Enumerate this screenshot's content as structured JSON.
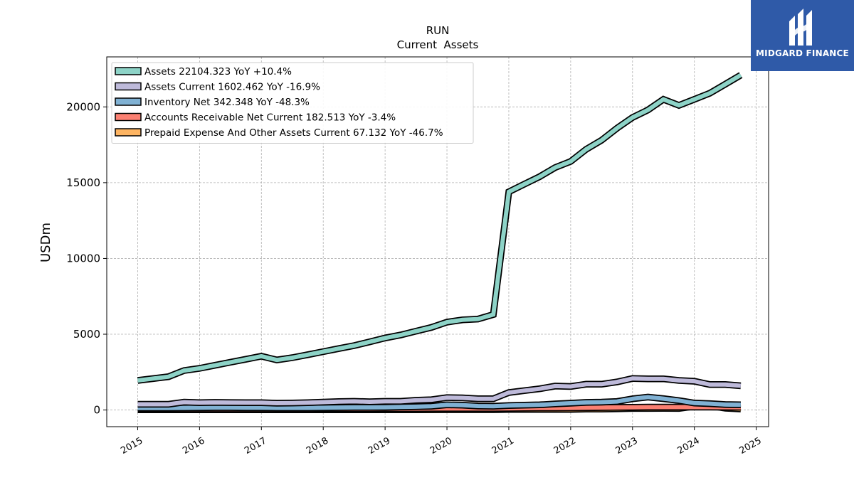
{
  "chart_data": {
    "type": "area",
    "title": "RUN",
    "subtitle": "Current  Assets",
    "ylabel": "USDm",
    "xlabel": "",
    "ylim": [
      -1100,
      23300
    ],
    "xlim": [
      2014.5,
      2025.2
    ],
    "yticks": [
      0,
      5000,
      10000,
      15000,
      20000
    ],
    "xticks": [
      2015,
      2016,
      2017,
      2018,
      2019,
      2020,
      2021,
      2022,
      2023,
      2024,
      2025
    ],
    "xtick_labels": [
      "2015",
      "2016",
      "2017",
      "2018",
      "2019",
      "2020",
      "2021",
      "2022",
      "2023",
      "2024",
      "2025"
    ],
    "ytick_labels": [
      "0",
      "5000",
      "10000",
      "15000",
      "20000"
    ],
    "grid": true,
    "legend_position": "top-left",
    "series": [
      {
        "name": "Assets  22104.323 YoY +10.4%",
        "color": "#8dd3c7",
        "x": [
          2015.0,
          2015.5,
          2015.75,
          2016.0,
          2016.25,
          2016.5,
          2016.75,
          2017.0,
          2017.25,
          2017.5,
          2017.75,
          2018.0,
          2018.25,
          2018.5,
          2018.75,
          2019.0,
          2019.25,
          2019.5,
          2019.75,
          2020.0,
          2020.25,
          2020.5,
          2020.75,
          2021.0,
          2021.25,
          2021.5,
          2021.75,
          2022.0,
          2022.25,
          2022.5,
          2022.75,
          2023.0,
          2023.25,
          2023.5,
          2023.75,
          2024.0,
          2024.25,
          2024.5,
          2024.75
        ],
        "values": [
          1950,
          2200,
          2600,
          2750,
          2950,
          3150,
          3350,
          3550,
          3300,
          3450,
          3650,
          3850,
          4050,
          4250,
          4500,
          4750,
          4950,
          5200,
          5450,
          5800,
          5950,
          6000,
          6300,
          14400,
          14900,
          15400,
          16000,
          16400,
          17200,
          17800,
          18600,
          19300,
          19800,
          20500,
          20100,
          20500,
          20900,
          21500,
          22100
        ]
      },
      {
        "name": "Assets Current  1602.462 YoY -16.9%",
        "color": "#bebada",
        "x": [
          2015.0,
          2015.5,
          2015.75,
          2016.0,
          2016.25,
          2016.5,
          2016.75,
          2017.0,
          2017.25,
          2017.5,
          2017.75,
          2018.0,
          2018.25,
          2018.5,
          2018.75,
          2019.0,
          2019.25,
          2019.5,
          2019.75,
          2020.0,
          2020.25,
          2020.5,
          2020.75,
          2021.0,
          2021.25,
          2021.5,
          2021.75,
          2022.0,
          2022.25,
          2022.5,
          2022.75,
          2023.0,
          2023.25,
          2023.5,
          2023.75,
          2024.0,
          2024.25,
          2024.5,
          2024.75
        ],
        "values": [
          380,
          380,
          520,
          480,
          500,
          490,
          480,
          480,
          450,
          460,
          480,
          520,
          550,
          570,
          540,
          570,
          570,
          640,
          680,
          820,
          800,
          740,
          740,
          1150,
          1280,
          1400,
          1580,
          1550,
          1700,
          1700,
          1850,
          2080,
          2060,
          2060,
          1950,
          1900,
          1680,
          1680,
          1600
        ]
      },
      {
        "name": "Inventory Net  342.348 YoY -48.3%",
        "color": "#80b1d3",
        "x": [
          2015.0,
          2015.5,
          2015.75,
          2016.0,
          2016.25,
          2016.5,
          2016.75,
          2017.0,
          2017.25,
          2017.5,
          2017.75,
          2018.0,
          2018.25,
          2018.5,
          2018.75,
          2019.0,
          2019.25,
          2019.5,
          2019.75,
          2020.0,
          2020.25,
          2020.5,
          2020.75,
          2021.0,
          2021.25,
          2021.5,
          2021.75,
          2022.0,
          2022.25,
          2022.5,
          2022.75,
          2023.0,
          2023.25,
          2023.5,
          2023.75,
          2024.0,
          2024.25,
          2024.5,
          2024.75
        ],
        "values": [
          130,
          130,
          140,
          150,
          160,
          160,
          150,
          150,
          140,
          140,
          140,
          150,
          160,
          170,
          170,
          180,
          200,
          220,
          250,
          340,
          320,
          260,
          250,
          300,
          320,
          340,
          400,
          450,
          500,
          520,
          560,
          740,
          850,
          750,
          620,
          460,
          420,
          360,
          342
        ]
      },
      {
        "name": "Accounts Receivable Net Current  182.513 YoY -3.4%",
        "color": "#fb8072",
        "x": [
          2015.0,
          2015.5,
          2015.75,
          2016.0,
          2016.25,
          2016.5,
          2016.75,
          2017.0,
          2017.25,
          2017.5,
          2017.75,
          2018.0,
          2018.25,
          2018.5,
          2018.75,
          2019.0,
          2019.25,
          2019.5,
          2019.75,
          2020.0,
          2020.25,
          2020.5,
          2020.75,
          2021.0,
          2021.25,
          2021.5,
          2021.75,
          2022.0,
          2022.25,
          2022.5,
          2022.75,
          2023.0,
          2023.25,
          2023.5,
          2023.75,
          2024.0,
          2024.25,
          2024.5,
          2024.75
        ],
        "values": [
          60,
          60,
          60,
          70,
          70,
          70,
          70,
          70,
          70,
          70,
          70,
          80,
          80,
          80,
          80,
          90,
          90,
          90,
          100,
          100,
          100,
          100,
          100,
          110,
          120,
          130,
          130,
          140,
          150,
          160,
          170,
          180,
          190,
          190,
          190,
          190,
          190,
          185,
          183
        ]
      },
      {
        "name": "Prepaid Expense And Other Assets Current  67.132 YoY -46.7%",
        "color": "#fdb462",
        "x": [
          2015.0,
          2015.5,
          2015.75,
          2016.0,
          2016.25,
          2016.5,
          2016.75,
          2017.0,
          2017.25,
          2017.5,
          2017.75,
          2018.0,
          2018.25,
          2018.5,
          2018.75,
          2019.0,
          2019.25,
          2019.5,
          2019.75,
          2020.0,
          2020.25,
          2020.5,
          2020.75,
          2021.0,
          2021.25,
          2021.5,
          2021.75,
          2022.0,
          2022.25,
          2022.5,
          2022.75,
          2023.0,
          2023.25,
          2023.5,
          2023.75,
          2024.0,
          2024.25,
          2024.5,
          2024.75
        ],
        "values": [
          10,
          10,
          10,
          10,
          10,
          10,
          10,
          10,
          10,
          10,
          10,
          10,
          10,
          10,
          10,
          10,
          10,
          10,
          10,
          20,
          20,
          20,
          20,
          40,
          40,
          40,
          40,
          40,
          60,
          60,
          80,
          100,
          100,
          110,
          100,
          240,
          290,
          120,
          67
        ]
      }
    ]
  },
  "logo": {
    "text": "MIDGARD FINANCE",
    "background": "#2f5aa8"
  }
}
